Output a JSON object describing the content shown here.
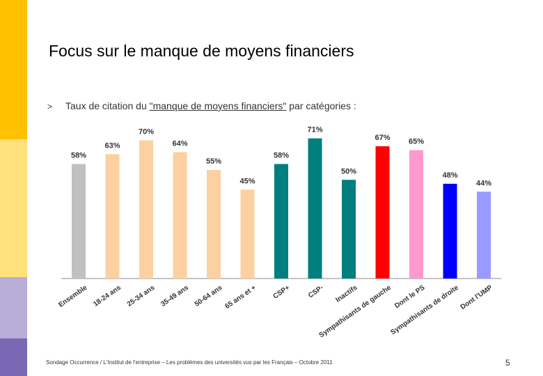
{
  "slide": {
    "title": "Focus sur le manque de moyens financiers",
    "bullet": ">",
    "subtitle_before": "Taux de citation du ",
    "subtitle_highlight": "\"manque de moyens financiers\"",
    "subtitle_after": " par catégories :",
    "footer": "Sondage Occurrence / L'Institut de l'entreprise – Les problèmes des universités vus par les Français – Octobre 2011",
    "page_number": "5"
  },
  "chart_data": {
    "type": "bar",
    "title": "",
    "xlabel": "",
    "ylabel": "",
    "ylim": [
      0,
      80
    ],
    "grid": false,
    "categories": [
      "Ensemble",
      "18-24 ans",
      "25-34 ans",
      "35-49 ans",
      "50-64 ans",
      "65 ans et +",
      "CSP+",
      "CSP-",
      "Inactifs",
      "Sympathisants de gauche",
      "Dont le PS",
      "Sympathisants de droite",
      "Dont l'UMP"
    ],
    "values": [
      58,
      63,
      70,
      64,
      55,
      45,
      58,
      71,
      50,
      67,
      65,
      48,
      44
    ],
    "data_labels": [
      "58%",
      "63%",
      "70%",
      "64%",
      "55%",
      "45%",
      "58%",
      "71%",
      "50%",
      "67%",
      "65%",
      "48%",
      "44%"
    ],
    "colors": [
      "#c0c0c0",
      "#fcd0a0",
      "#fcd0a0",
      "#fcd0a0",
      "#fcd0a0",
      "#fcd0a0",
      "#007f7f",
      "#007f7f",
      "#007f7f",
      "#ff0000",
      "#ff99cc",
      "#0000ff",
      "#9999ff"
    ]
  }
}
